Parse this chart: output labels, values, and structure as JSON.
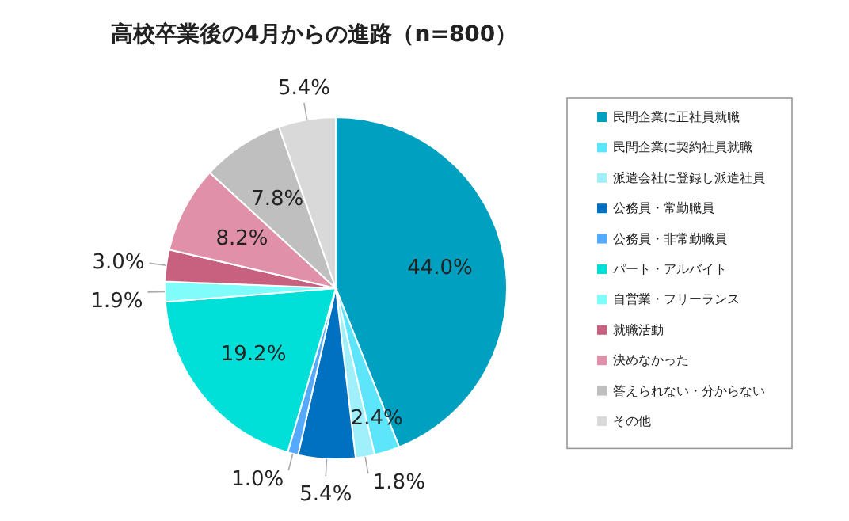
{
  "chart_data": {
    "type": "pie",
    "title": "高校卒業後の4月からの進路（n=800）",
    "categories": [
      "民間企業に正社員就職",
      "民間企業に契約社員就職",
      "派遣会社に登録し派遣社員",
      "公務員・常勤職員",
      "公務員・非常勤職員",
      "パート・アルバイト",
      "自営業・フリーランス",
      "就職活動",
      "決めなかった",
      "答えられない・分からない",
      "その他"
    ],
    "values": [
      44.0,
      2.4,
      1.8,
      5.4,
      1.0,
      19.2,
      1.9,
      3.0,
      8.2,
      7.8,
      5.4
    ],
    "colors": [
      "#00a0c0",
      "#5de6fb",
      "#a0f0fc",
      "#0070c0",
      "#55aaff",
      "#00e0d8",
      "#80fcfa",
      "#c86080",
      "#e090a8",
      "#bfbfbf",
      "#d9d9d9"
    ],
    "value_labels": [
      "44.0%",
      "2.4%",
      "1.8%",
      "5.4%",
      "1.0%",
      "19.2%",
      "1.9%",
      "3.0%",
      "8.2%",
      "7.8%",
      "5.4%"
    ],
    "legend": "right"
  }
}
